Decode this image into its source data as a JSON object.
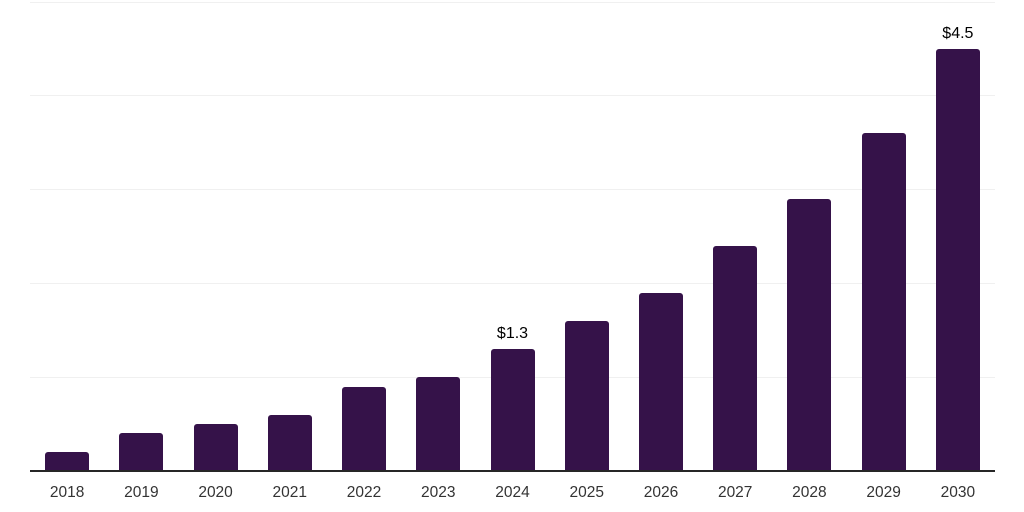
{
  "chart_data": {
    "type": "bar",
    "title": "",
    "xlabel": "",
    "ylabel": "",
    "categories": [
      "2018",
      "2019",
      "2020",
      "2021",
      "2022",
      "2023",
      "2024",
      "2025",
      "2026",
      "2027",
      "2028",
      "2029",
      "2030"
    ],
    "values": [
      0.2,
      0.4,
      0.5,
      0.6,
      0.9,
      1.0,
      1.3,
      1.6,
      1.9,
      2.4,
      2.9,
      3.6,
      4.5
    ],
    "data_labels": [
      "",
      "",
      "",
      "",
      "",
      "",
      "$1.3",
      "",
      "",
      "",
      "",
      "",
      "$4.5"
    ],
    "ylim": [
      0,
      5
    ],
    "gridline_values": [
      1,
      2,
      3,
      4,
      5
    ],
    "grid": "horizontal",
    "legend": "none",
    "colors": {
      "bar": "#351249",
      "grid": "#f0f0f0",
      "axis": "#262626",
      "tick_label": "#333333",
      "data_label": "#000000",
      "background": "#ffffff"
    }
  }
}
